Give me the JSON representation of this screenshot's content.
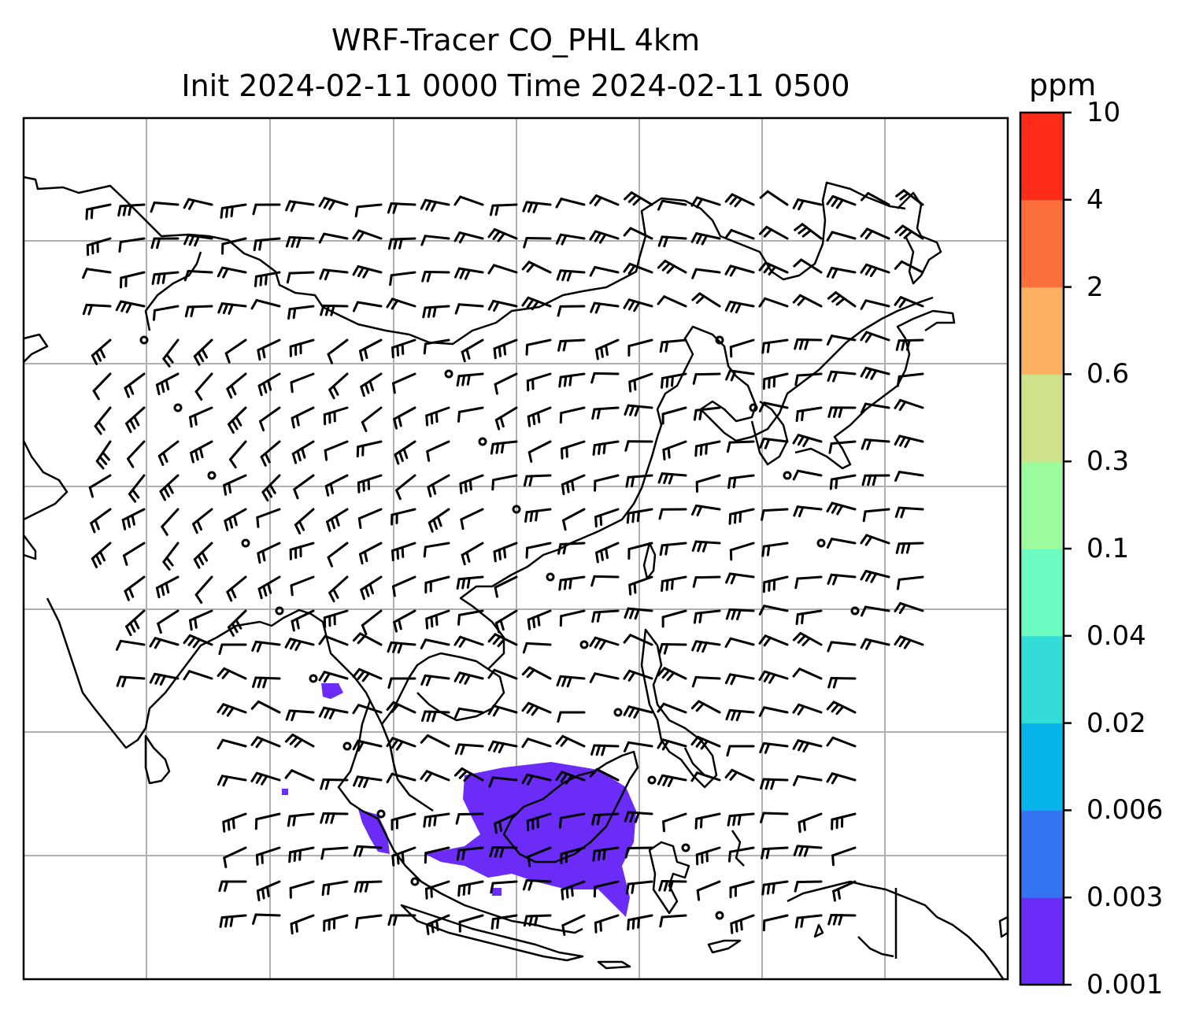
{
  "title": {
    "line1": "WRF-Tracer CO_PHL 4km",
    "line2": "Init 2024-02-11 0000 Time 2024-02-11 0500"
  },
  "colorbar": {
    "unit": "ppm",
    "ticks": [
      "0.001",
      "0.003",
      "0.006",
      "0.02",
      "0.04",
      "0.1",
      "0.3",
      "0.6",
      "2",
      "4",
      "10"
    ],
    "colors": [
      "#6b2cf7",
      "#3474f2",
      "#07b4ea",
      "#33dcd6",
      "#6cfcc1",
      "#9cfb9b",
      "#cde28a",
      "#fcb062",
      "#fd703b",
      "#fd2b17"
    ]
  },
  "map": {
    "plume_color": "#6b2cf7",
    "coastline_color": "#000000",
    "grid_color": "#b0b0b0"
  }
}
